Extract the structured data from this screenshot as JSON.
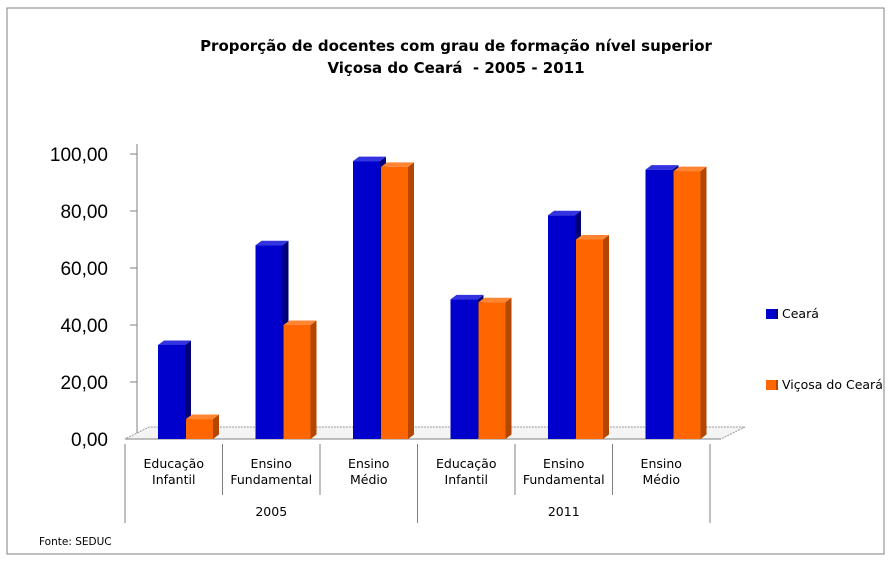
{
  "chart_data": {
    "type": "bar",
    "title": "Proporção de docentes com grau de formação nível superior",
    "subtitle": "Viçosa do Ceará  - 2005 - 2011",
    "groups": [
      {
        "label": "2005",
        "categories": [
          "Educação Infantil",
          "Ensino Fundamental",
          "Ensino Médio"
        ]
      },
      {
        "label": "2011",
        "categories": [
          "Educação Infantil",
          "Ensino Fundamental",
          "Ensino Médio"
        ]
      }
    ],
    "categories": [
      [
        "Educação",
        "Infantil"
      ],
      [
        "Ensino",
        "Fundamental"
      ],
      [
        "Ensino",
        "Médio"
      ],
      [
        "Educação",
        "Infantil"
      ],
      [
        "Ensino",
        "Fundamental"
      ],
      [
        "Ensino",
        "Médio"
      ]
    ],
    "series": [
      {
        "name": "Ceará",
        "color": "#0000CC",
        "side": "#00007A",
        "top": "#3333E0",
        "values": [
          33,
          68,
          97.5,
          49,
          78.5,
          94.5
        ]
      },
      {
        "name": "Viçosa do Ceará",
        "color": "#FF6600",
        "side": "#B34700",
        "top": "#FF8533",
        "values": [
          7,
          40,
          95.5,
          48,
          70,
          94
        ]
      }
    ],
    "y_ticks": [
      "0,00",
      "20,00",
      "40,00",
      "60,00",
      "80,00",
      "100,00"
    ],
    "ylim": [
      0,
      100
    ],
    "legend_position": "right",
    "grid": false,
    "source": "Fonte: SEDUC"
  }
}
